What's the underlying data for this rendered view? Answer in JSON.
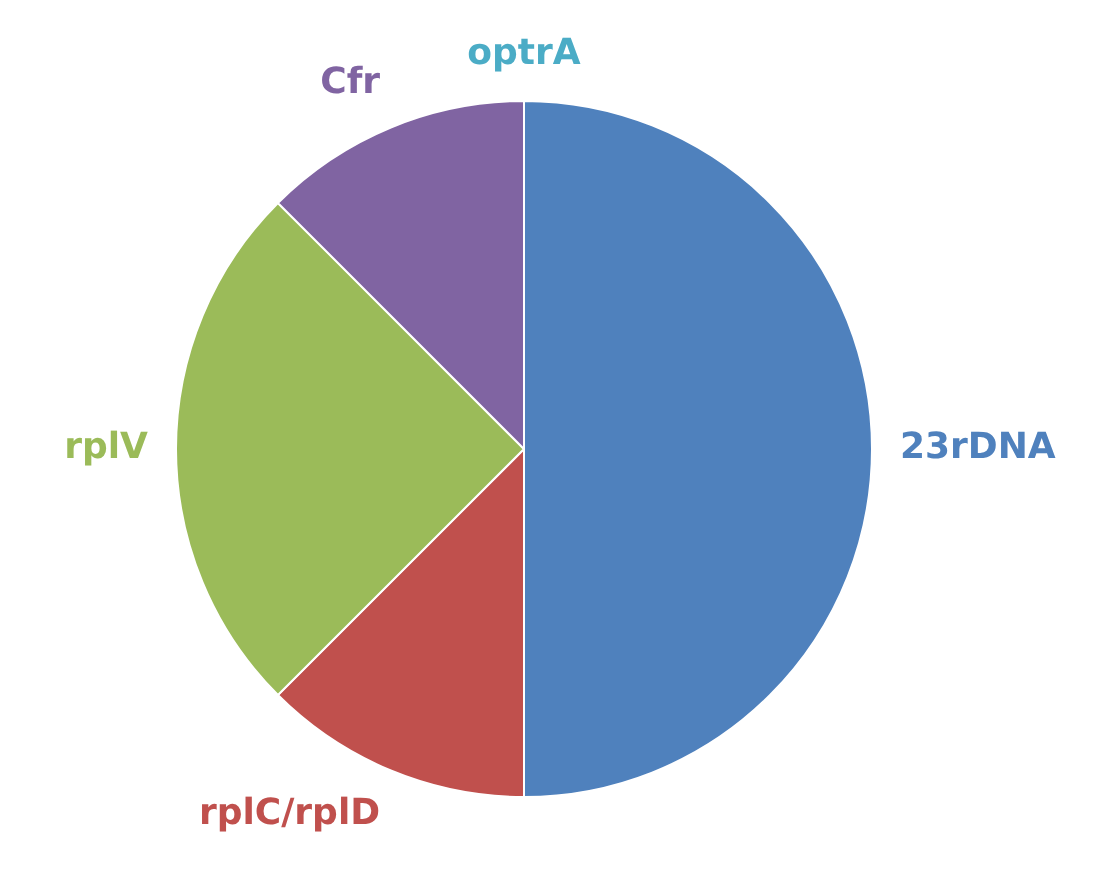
{
  "chart_data": {
    "type": "pie",
    "categories": [
      "23rDNA",
      "rplC/rplD",
      "rplV",
      "Cfr",
      "optrA"
    ],
    "values": [
      50,
      12.5,
      25,
      12.5,
      0
    ],
    "colors": [
      "#4f81bd",
      "#c0504d",
      "#9bbb59",
      "#8064a2",
      "#4bacc6"
    ],
    "legend": false
  }
}
